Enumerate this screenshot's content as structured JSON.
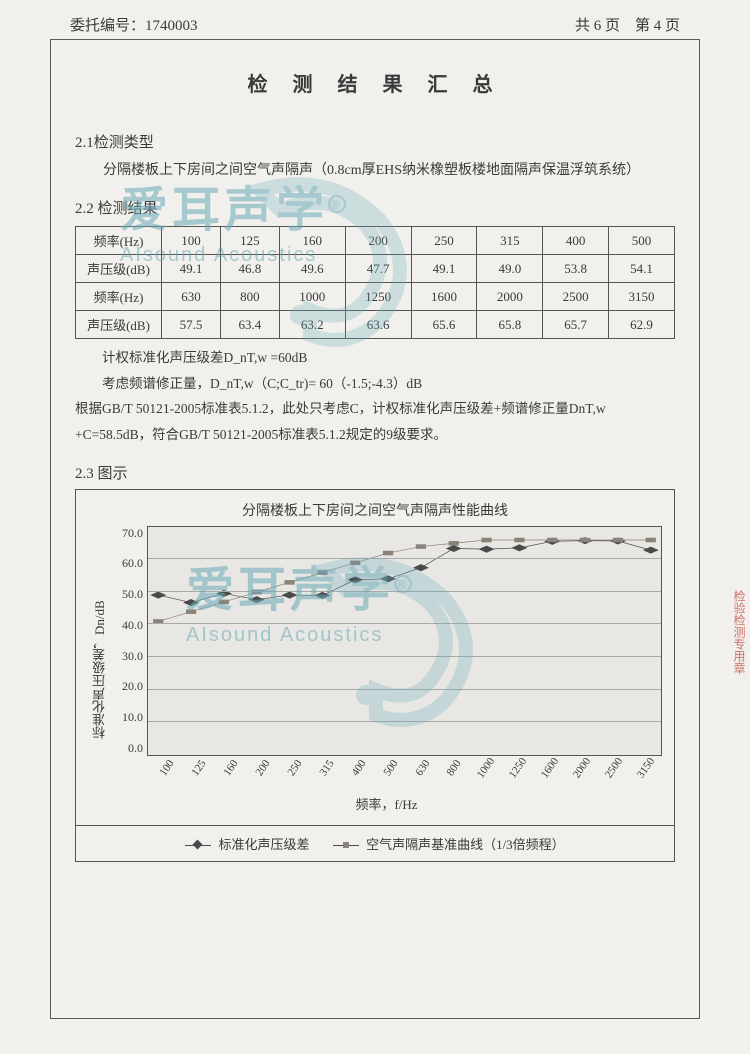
{
  "header": {
    "left_label": "委托编号：",
    "left_value": "1740003",
    "right": "共 6 页　第 4 页"
  },
  "title": "检 测 结 果 汇 总",
  "section21": {
    "heading": "2.1检测类型",
    "text": "分隔楼板上下房间之间空气声隔声（0.8cm厚EHS纳米橡塑板楼地面隔声保温浮筑系统）"
  },
  "section22": {
    "heading": "2.2 检测结果",
    "row_labels": {
      "freq": "频率(Hz)",
      "spl": "声压级(dB)"
    },
    "freq_top": [
      "100",
      "125",
      "160",
      "200",
      "250",
      "315",
      "400",
      "500"
    ],
    "spl_top": [
      "49.1",
      "46.8",
      "49.6",
      "47.7",
      "49.1",
      "49.0",
      "53.8",
      "54.1"
    ],
    "freq_bot": [
      "630",
      "800",
      "1000",
      "1250",
      "1600",
      "2000",
      "2500",
      "3150"
    ],
    "spl_bot": [
      "57.5",
      "63.4",
      "63.2",
      "63.6",
      "65.6",
      "65.8",
      "65.7",
      "62.9"
    ],
    "notes": [
      "计权标准化声压级差D_nT,w =60dB",
      "考虑频谱修正量，D_nT,w（C;C_tr)= 60（-1.5;-4.3）dB",
      "根据GB/T 50121-2005标准表5.1.2，此处只考虑C，计权标准化声压级差+频谱修正量DnT,w +C=58.5dB，符合GB/T 50121-2005标准表5.1.2规定的9级要求。"
    ]
  },
  "section23": {
    "heading": "2.3 图示",
    "chart": {
      "type": "line",
      "title": "分隔楼板上下房间之间空气声隔声性能曲线",
      "ylabel": "标准化声压级差，Dn/dB",
      "xlabel": "频率，f/Hz",
      "ylim": [
        0,
        70
      ],
      "ytick_step": 10,
      "yticks": [
        "0.0",
        "10.0",
        "20.0",
        "30.0",
        "40.0",
        "50.0",
        "60.0",
        "70.0"
      ],
      "x_categories": [
        "100",
        "125",
        "160",
        "200",
        "250",
        "315",
        "400",
        "500",
        "630",
        "800",
        "1000",
        "1250",
        "1600",
        "2000",
        "2500",
        "3150"
      ],
      "series": [
        {
          "name": "标准化声压级差",
          "marker": "diamond",
          "color": "#4a4a4a",
          "values": [
            49.1,
            46.8,
            49.6,
            47.7,
            49.1,
            49.0,
            53.8,
            54.1,
            57.5,
            63.4,
            63.2,
            63.6,
            65.6,
            65.8,
            65.7,
            62.9
          ]
        },
        {
          "name": "空气声隔声基准曲线（1/3倍频程）",
          "marker": "square",
          "color": "#8a837a",
          "values": [
            41,
            44,
            47,
            50,
            53,
            56,
            59,
            62,
            64,
            65,
            66,
            66,
            66,
            66,
            66,
            66
          ]
        }
      ],
      "background_color": "#e8e7e3",
      "grid_color": "#a8a8a4"
    }
  },
  "watermark": {
    "cn": "爱耳声学",
    "en": "AIsound Acoustics",
    "r": "®"
  },
  "side_stamp": "检验检测专用章"
}
